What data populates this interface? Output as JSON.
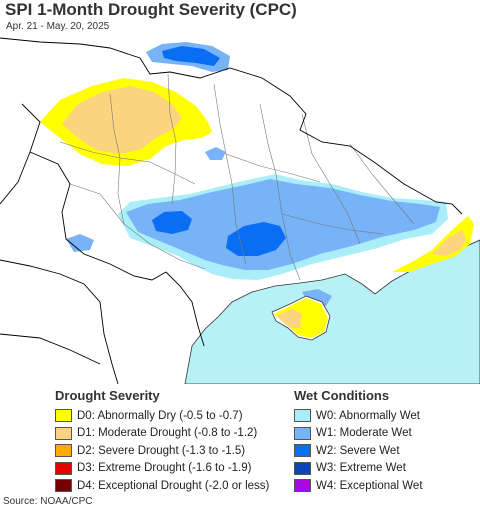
{
  "header": {
    "title": "SPI 1-Month Drought Severity (CPC)",
    "subtitle": "Apr. 21 - May. 20, 2025"
  },
  "map": {
    "land_color": "#ffffff",
    "sea_color": "#b7f1f7",
    "border_color": "#000000",
    "admin_border_color": "#777777"
  },
  "legend": {
    "drought": {
      "heading": "Drought Severity",
      "items": [
        {
          "label": "D0: Abnormally Dry (-0.5 to -0.7)",
          "color": "#ffff00"
        },
        {
          "label": "D1: Moderate Drought (-0.8 to -1.2)",
          "color": "#fcd37f"
        },
        {
          "label": "D2: Severe Drought (-1.3 to -1.5)",
          "color": "#ffaa00"
        },
        {
          "label": "D3: Extreme Drought (-1.6 to -1.9)",
          "color": "#e60000"
        },
        {
          "label": "D4: Exceptional Drought (-2.0 or less)",
          "color": "#730000"
        }
      ]
    },
    "wet": {
      "heading": "Wet Conditions",
      "items": [
        {
          "label": "W0: Abnormally Wet",
          "color": "#aaeefa"
        },
        {
          "label": "W1: Moderate Wet",
          "color": "#77b3f6"
        },
        {
          "label": "W2: Severe Wet",
          "color": "#0a6ef5"
        },
        {
          "label": "W3: Extreme Wet",
          "color": "#0a46b5"
        },
        {
          "label": "W4: Exceptional Wet",
          "color": "#a50ae6"
        }
      ]
    }
  },
  "footer": {
    "source": "Source: NOAA/CPC"
  }
}
